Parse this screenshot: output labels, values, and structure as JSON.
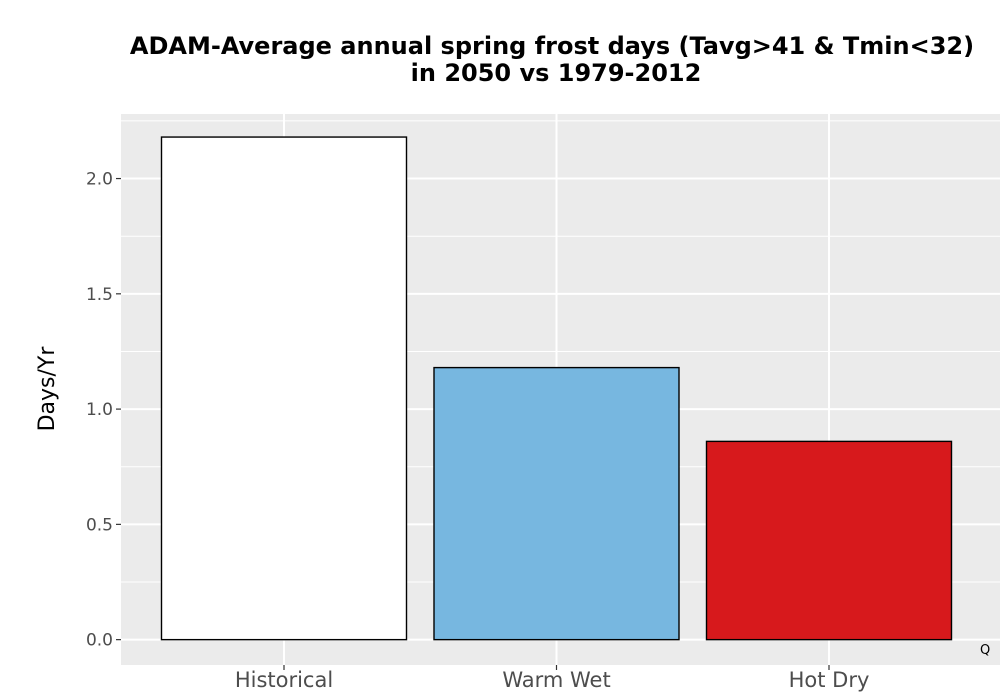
{
  "chart_data": {
    "type": "bar",
    "title_lines": [
      "ADAM-Average annual spring frost days (Tavg>41 & Tmin<32)",
      "in 2050 vs 1979-2012"
    ],
    "xlabel": "",
    "ylabel": "Days/Yr",
    "categories": [
      "Historical",
      "Warm Wet",
      "Hot Dry"
    ],
    "values": [
      2.18,
      1.18,
      0.86
    ],
    "bar_colors": [
      "#ffffff",
      "#77b7e0",
      "#d7191c"
    ],
    "bar_outline": "#000000",
    "ylim": [
      -0.11,
      2.28
    ],
    "yticks": [
      {
        "value": 0.0,
        "label": "0.0"
      },
      {
        "value": 0.5,
        "label": "0.5"
      },
      {
        "value": 1.0,
        "label": "1.0"
      },
      {
        "value": 1.5,
        "label": "1.5"
      },
      {
        "value": 2.0,
        "label": "2.0"
      }
    ],
    "grid": true,
    "panel_background": "#ebebeb",
    "grid_color": "#ffffff",
    "legend": "none",
    "annotation": "Q"
  }
}
